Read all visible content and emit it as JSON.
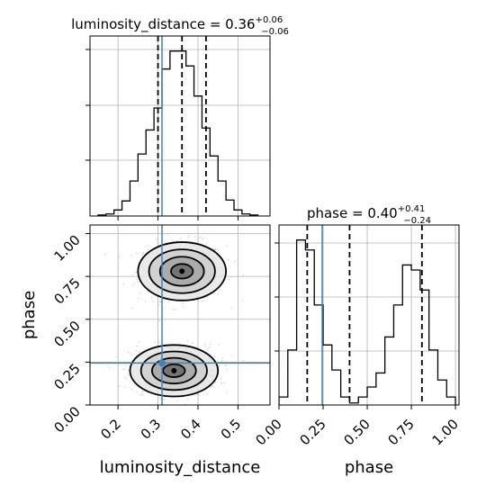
{
  "chart_data": {
    "type": "corner",
    "parameters": [
      "luminosity_distance",
      "phase"
    ],
    "truths": {
      "luminosity_distance": 0.31,
      "phase": 0.245
    },
    "colors": {
      "truth": "#4682b4",
      "hist": "#000000",
      "grid": "#b0b0b0",
      "quantile": "#000000"
    },
    "panels": [
      {
        "id": "hist-luminosity-distance",
        "type": "histogram",
        "parameter": "luminosity_distance",
        "title": {
          "base": "luminosity_distance = 0.36",
          "sup": "+0.06",
          "sub": "−0.06"
        },
        "xlim": [
          0.13,
          0.58
        ],
        "bin_edges": [
          0.15,
          0.17,
          0.19,
          0.21,
          0.23,
          0.25,
          0.27,
          0.29,
          0.31,
          0.33,
          0.35,
          0.37,
          0.39,
          0.41,
          0.43,
          0.45,
          0.47,
          0.49,
          0.51,
          0.53,
          0.55
        ],
        "counts": [
          1,
          2,
          6,
          15,
          35,
          62,
          86,
          108,
          147,
          165,
          165,
          150,
          120,
          88,
          60,
          35,
          16,
          6,
          2,
          1
        ],
        "ylim": [
          0,
          180
        ],
        "quantiles": [
          0.3,
          0.36,
          0.42
        ],
        "truth": 0.31,
        "show_xtick_labels": false,
        "show_ytick_labels": false
      },
      {
        "id": "scatter-phase-vs-luminosity-distance",
        "type": "density-2d",
        "x_parameter": "luminosity_distance",
        "y_parameter": "phase",
        "xlim": [
          0.13,
          0.58
        ],
        "ylim": [
          0.0,
          1.05
        ],
        "xticks": [
          "0.2",
          "0.3",
          "0.4",
          "0.5"
        ],
        "xtick_values": [
          0.2,
          0.3,
          0.4,
          0.5
        ],
        "yticks": [
          "0.00",
          "0.25",
          "0.50",
          "0.75",
          "1.00"
        ],
        "ytick_values": [
          0.0,
          0.25,
          0.5,
          0.75,
          1.0
        ],
        "xlabel": "luminosity_distance",
        "ylabel": "phase",
        "modes": [
          {
            "center": [
              0.36,
              0.78
            ],
            "sigma": [
              0.055,
              0.085
            ]
          },
          {
            "center": [
              0.34,
              0.2
            ],
            "sigma": [
              0.055,
              0.075
            ]
          }
        ],
        "truth": [
          0.31,
          0.245
        ]
      },
      {
        "id": "hist-phase",
        "type": "histogram",
        "parameter": "phase",
        "title": {
          "base": "phase = 0.40",
          "sup": "+0.41",
          "sub": "−0.24"
        },
        "xlim": [
          0.0,
          1.02
        ],
        "bin_edges": [
          0.0,
          0.05,
          0.1,
          0.15,
          0.2,
          0.25,
          0.3,
          0.35,
          0.4,
          0.45,
          0.5,
          0.55,
          0.6,
          0.65,
          0.7,
          0.75,
          0.8,
          0.85,
          0.9,
          0.95,
          1.0
        ],
        "counts": [
          8,
          55,
          165,
          155,
          100,
          60,
          35,
          8,
          2,
          8,
          18,
          32,
          68,
          100,
          140,
          135,
          115,
          55,
          25,
          8
        ],
        "ylim": [
          0,
          180
        ],
        "quantiles": [
          0.16,
          0.4,
          0.81
        ],
        "truth": 0.245,
        "xticks": [
          "0.00",
          "0.25",
          "0.50",
          "0.75",
          "1.00"
        ],
        "xtick_values": [
          0.0,
          0.25,
          0.5,
          0.75,
          1.0
        ],
        "xlabel": "phase",
        "show_ytick_labels": false
      }
    ]
  }
}
